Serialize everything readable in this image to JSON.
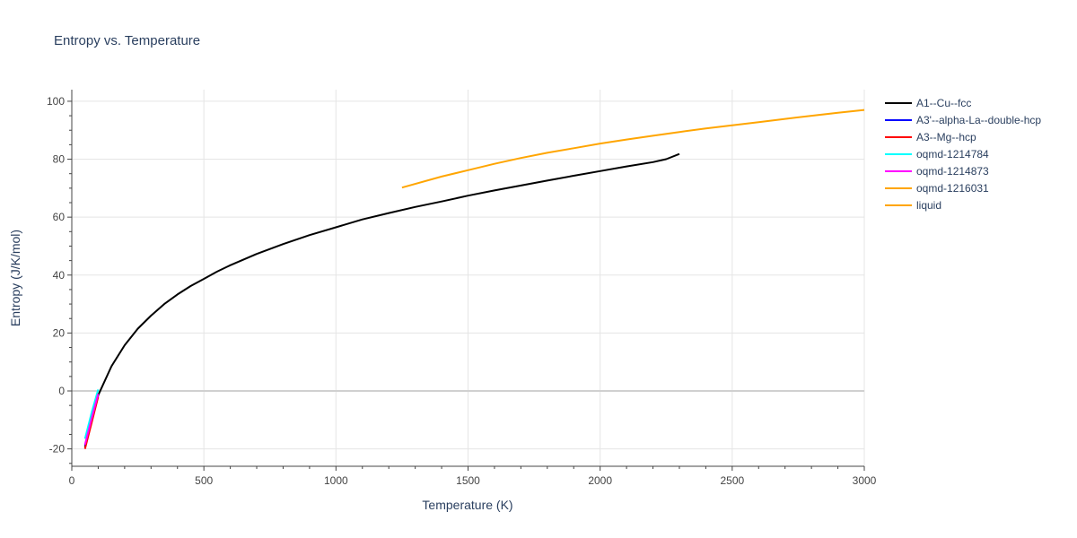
{
  "chart_data": {
    "type": "line",
    "title": "Entropy vs. Temperature",
    "xlabel": "Temperature (K)",
    "ylabel": "Entropy (J/K/mol)",
    "xlim": [
      0,
      3000
    ],
    "ylim": [
      -26,
      104
    ],
    "x_ticks": [
      0,
      500,
      1000,
      1500,
      2000,
      2500,
      3000
    ],
    "y_ticks": [
      -20,
      0,
      20,
      40,
      60,
      80,
      100
    ],
    "grid": true,
    "legend_position": "right",
    "series": [
      {
        "name": "A1--Cu--fcc",
        "color": "#000000",
        "x": [
          50,
          100,
          150,
          200,
          250,
          300,
          350,
          400,
          450,
          500,
          550,
          600,
          700,
          800,
          900,
          1000,
          1100,
          1200,
          1300,
          1400,
          1500,
          1600,
          1700,
          1800,
          1900,
          2000,
          2100,
          2200,
          2250,
          2300
        ],
        "y": [
          -19.5,
          -1.5,
          8.5,
          15.8,
          21.5,
          26.0,
          30.0,
          33.3,
          36.2,
          38.7,
          41.2,
          43.4,
          47.3,
          50.7,
          53.8,
          56.5,
          59.2,
          61.4,
          63.5,
          65.4,
          67.4,
          69.2,
          70.9,
          72.6,
          74.3,
          75.9,
          77.5,
          79.0,
          80.0,
          81.8
        ]
      },
      {
        "name": "A3'--alpha-La--double-hcp",
        "color": "#0000ff",
        "x": [
          50,
          75,
          100
        ],
        "y": [
          -19.0,
          -10.0,
          -1.5
        ]
      },
      {
        "name": "A3--Mg--hcp",
        "color": "#ff0000",
        "x": [
          50,
          75,
          100
        ],
        "y": [
          -20.0,
          -11.0,
          -2.0
        ]
      },
      {
        "name": "oqmd-1214784",
        "color": "#00ffff",
        "x": [
          50,
          75,
          100
        ],
        "y": [
          -16.5,
          -7.5,
          0.5
        ]
      },
      {
        "name": "oqmd-1214873",
        "color": "#ff00ff",
        "x": [
          50,
          75,
          100
        ],
        "y": [
          -18.5,
          -9.5,
          -1.0
        ]
      },
      {
        "name": "oqmd-1216031",
        "color": "#ffa500",
        "x": [],
        "y": []
      },
      {
        "name": "liquid",
        "color": "#ffa500",
        "x": [
          1250,
          1400,
          1500,
          1600,
          1700,
          1800,
          1900,
          2000,
          2100,
          2200,
          2300,
          2400,
          2500,
          2600,
          2700,
          2800,
          2900,
          3000
        ],
        "y": [
          70.2,
          74.0,
          76.2,
          78.4,
          80.4,
          82.2,
          83.8,
          85.4,
          86.8,
          88.1,
          89.4,
          90.6,
          91.7,
          92.8,
          93.9,
          95.0,
          96.0,
          97.0
        ]
      }
    ]
  }
}
